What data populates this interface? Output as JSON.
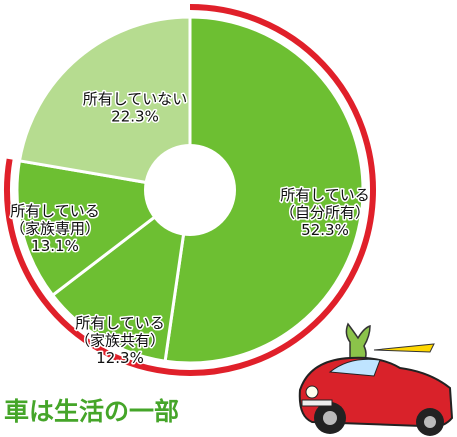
{
  "chart_data": {
    "type": "donut",
    "categories": [
      "所有している\n（自分所有）",
      "所有している\n（家族共有）",
      "所有している\n（家族専用）",
      "所有していない"
    ],
    "values": [
      52.3,
      12.3,
      13.1,
      22.3
    ],
    "value_labels": [
      "52.3%",
      "12.3%",
      "13.1%",
      "22.3%"
    ],
    "colors": [
      "#6dbf32",
      "#6dbf32",
      "#6dbf32",
      "#b6dc90"
    ],
    "caption": "車は生活の一部"
  }
}
